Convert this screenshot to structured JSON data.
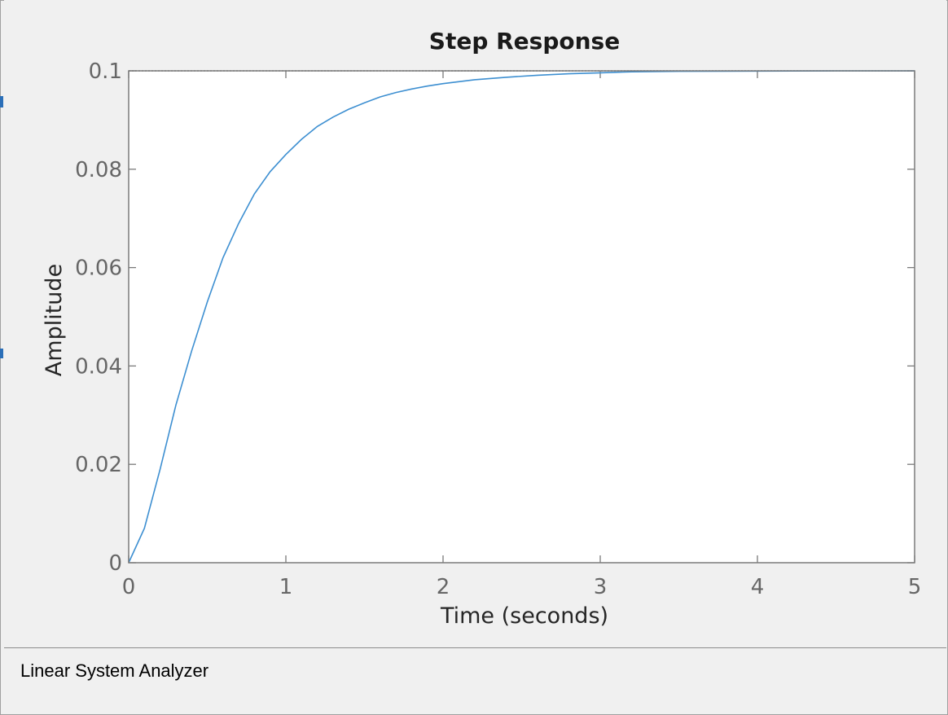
{
  "window": {
    "status_text": "Linear System Analyzer"
  },
  "chart_data": {
    "type": "line",
    "title": "Step Response",
    "xlabel": "Time (seconds)",
    "ylabel": "Amplitude",
    "xlim": [
      0,
      5
    ],
    "ylim": [
      0,
      0.1
    ],
    "x_ticks": [
      0,
      1,
      2,
      3,
      4,
      5
    ],
    "x_tick_labels": [
      "0",
      "1",
      "2",
      "3",
      "4",
      "5"
    ],
    "y_ticks": [
      0,
      0.02,
      0.04,
      0.06,
      0.08,
      0.1
    ],
    "y_tick_labels": [
      "0",
      "0.02",
      "0.04",
      "0.06",
      "0.08",
      "0.1"
    ],
    "grid": false,
    "steady_state_value": 0.1,
    "series": [
      {
        "color": "#3d8fd1",
        "x": [
          0,
          0.1,
          0.2,
          0.3,
          0.4,
          0.5,
          0.6,
          0.7,
          0.8,
          0.9,
          1.0,
          1.1,
          1.2,
          1.3,
          1.4,
          1.5,
          1.6,
          1.7,
          1.8,
          1.9,
          2.0,
          2.2,
          2.4,
          2.6,
          2.8,
          3.0,
          3.2,
          3.5,
          4.0,
          4.5,
          5.0
        ],
        "y": [
          0,
          0.007,
          0.019,
          0.032,
          0.043,
          0.053,
          0.062,
          0.069,
          0.075,
          0.0795,
          0.083,
          0.0861,
          0.0887,
          0.0906,
          0.0922,
          0.0935,
          0.0947,
          0.0956,
          0.0963,
          0.0969,
          0.0974,
          0.0982,
          0.0987,
          0.0991,
          0.0994,
          0.0996,
          0.0998,
          0.0999,
          0.09995,
          0.1,
          0.1
        ]
      }
    ]
  }
}
